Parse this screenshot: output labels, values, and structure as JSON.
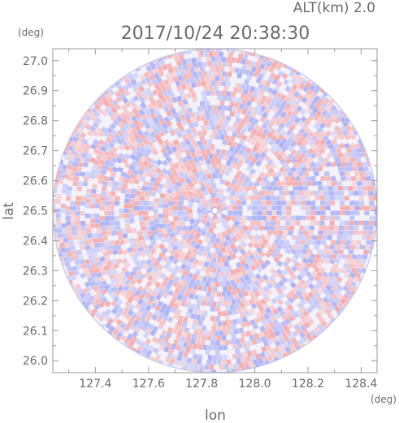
{
  "header": {
    "altitude_label": "ALT(km) 2.0",
    "timestamp": "2017/10/24 20:38:30"
  },
  "chart_data": {
    "type": "heatmap",
    "title": "2017/10/24 20:38:30",
    "xlabel": "lon",
    "ylabel": "lat",
    "x_unit": "(deg)",
    "y_unit": "(deg)",
    "xlim": [
      127.24,
      128.46
    ],
    "ylim": [
      25.96,
      27.04
    ],
    "x_ticks": [
      127.4,
      127.6,
      127.8,
      128.0,
      128.2,
      128.4
    ],
    "y_ticks": [
      26.0,
      26.1,
      26.2,
      26.3,
      26.4,
      26.5,
      26.6,
      26.7,
      26.8,
      26.9,
      27.0
    ],
    "x_tick_labels": [
      "127.4",
      "127.6",
      "127.8",
      "128.0",
      "128.2",
      "128.4"
    ],
    "y_tick_labels": [
      "26.0",
      "26.1",
      "26.2",
      "26.3",
      "26.4",
      "26.5",
      "26.6",
      "26.7",
      "26.8",
      "26.9",
      "27.0"
    ],
    "radar_center": {
      "lon": 127.85,
      "lat": 26.5
    },
    "radar_radius_lat_deg": 0.54,
    "colors": {
      "positive": "#f5a8a8",
      "negative": "#a8aef5",
      "frame": "#9a9a9a",
      "text": "#6b6b6b"
    }
  }
}
